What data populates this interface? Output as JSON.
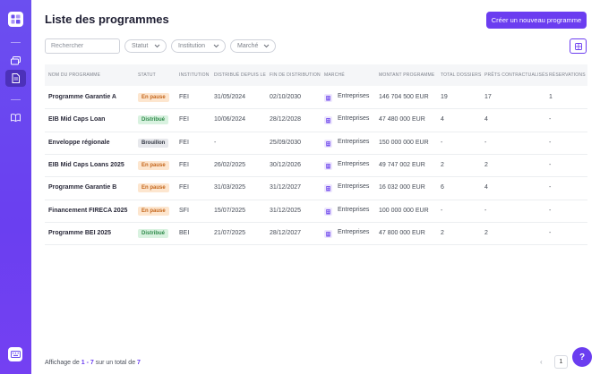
{
  "page": {
    "title": "Liste des programmes",
    "create_button": "Créer un nouveau programme"
  },
  "search": {
    "placeholder": "Rechercher",
    "value": ""
  },
  "filters": [
    {
      "label": "Statut"
    },
    {
      "label": "Institution"
    },
    {
      "label": "Marché"
    }
  ],
  "table": {
    "columns": [
      "NOM DU PROGRAMME",
      "STATUT",
      "INSTITUTION",
      "DISTRIBUÉ DEPUIS LE",
      "FIN DE DISTRIBUTION",
      "MARCHÉ",
      "MONTANT PROGRAMME",
      "TOTAL DOSSIERS",
      "PRÊTS CONTRACTUALISÉS",
      "RÉSERVATIONS"
    ],
    "rows": [
      {
        "name": "Programme Garantie A",
        "status": "En pause",
        "status_type": "pause",
        "institution": "FEI",
        "start": "31/05/2024",
        "end": "02/10/2030",
        "market": "Entreprises",
        "amount": "146 704 500 EUR",
        "dossiers": "19",
        "prets": "17",
        "reservations": "1"
      },
      {
        "name": "EIB Mid Caps Loan",
        "status": "Distribué",
        "status_type": "distrib",
        "institution": "FEI",
        "start": "10/06/2024",
        "end": "28/12/2028",
        "market": "Entreprises",
        "amount": "47 480 000 EUR",
        "dossiers": "4",
        "prets": "4",
        "reservations": "-"
      },
      {
        "name": "Enveloppe régionale",
        "status": "Brouillon",
        "status_type": "brouillon",
        "institution": "FEI",
        "start": "-",
        "end": "25/09/2030",
        "market": "Entreprises",
        "amount": "150 000 000 EUR",
        "dossiers": "-",
        "prets": "-",
        "reservations": "-"
      },
      {
        "name": "EIB Mid Caps Loans 2025",
        "status": "En pause",
        "status_type": "pause",
        "institution": "FEI",
        "start": "26/02/2025",
        "end": "30/12/2026",
        "market": "Entreprises",
        "amount": "49 747 002 EUR",
        "dossiers": "2",
        "prets": "2",
        "reservations": "-"
      },
      {
        "name": "Programme Garantie B",
        "status": "En pause",
        "status_type": "pause",
        "institution": "FEI",
        "start": "31/03/2025",
        "end": "31/12/2027",
        "market": "Entreprises",
        "amount": "16 032 000 EUR",
        "dossiers": "6",
        "prets": "4",
        "reservations": "-"
      },
      {
        "name": "Financement FIRECA 2025",
        "status": "En pause",
        "status_type": "pause",
        "institution": "SFI",
        "start": "15/07/2025",
        "end": "31/12/2025",
        "market": "Entreprises",
        "amount": "100 000 000 EUR",
        "dossiers": "-",
        "prets": "-",
        "reservations": "-"
      },
      {
        "name": "Programme BEI 2025",
        "status": "Distribué",
        "status_type": "distrib",
        "institution": "BEI",
        "start": "21/07/2025",
        "end": "28/12/2027",
        "market": "Entreprises",
        "amount": "47 800 000 EUR",
        "dossiers": "2",
        "prets": "2",
        "reservations": "-"
      }
    ]
  },
  "footer": {
    "prefix": "Affichage de",
    "range": "1 - 7",
    "middle": "sur un total de",
    "total": "7",
    "page": "1",
    "prev": "‹",
    "help": "?"
  },
  "colors": {
    "accent": "#6b3df0",
    "sidebar": "#6a45f0"
  },
  "icons": {
    "sidebar": [
      "logo-icon",
      "cards-icon",
      "document-icon",
      "book-icon",
      "keyboard-icon"
    ],
    "market": "building-icon",
    "view_toggle": "grid-icon"
  }
}
